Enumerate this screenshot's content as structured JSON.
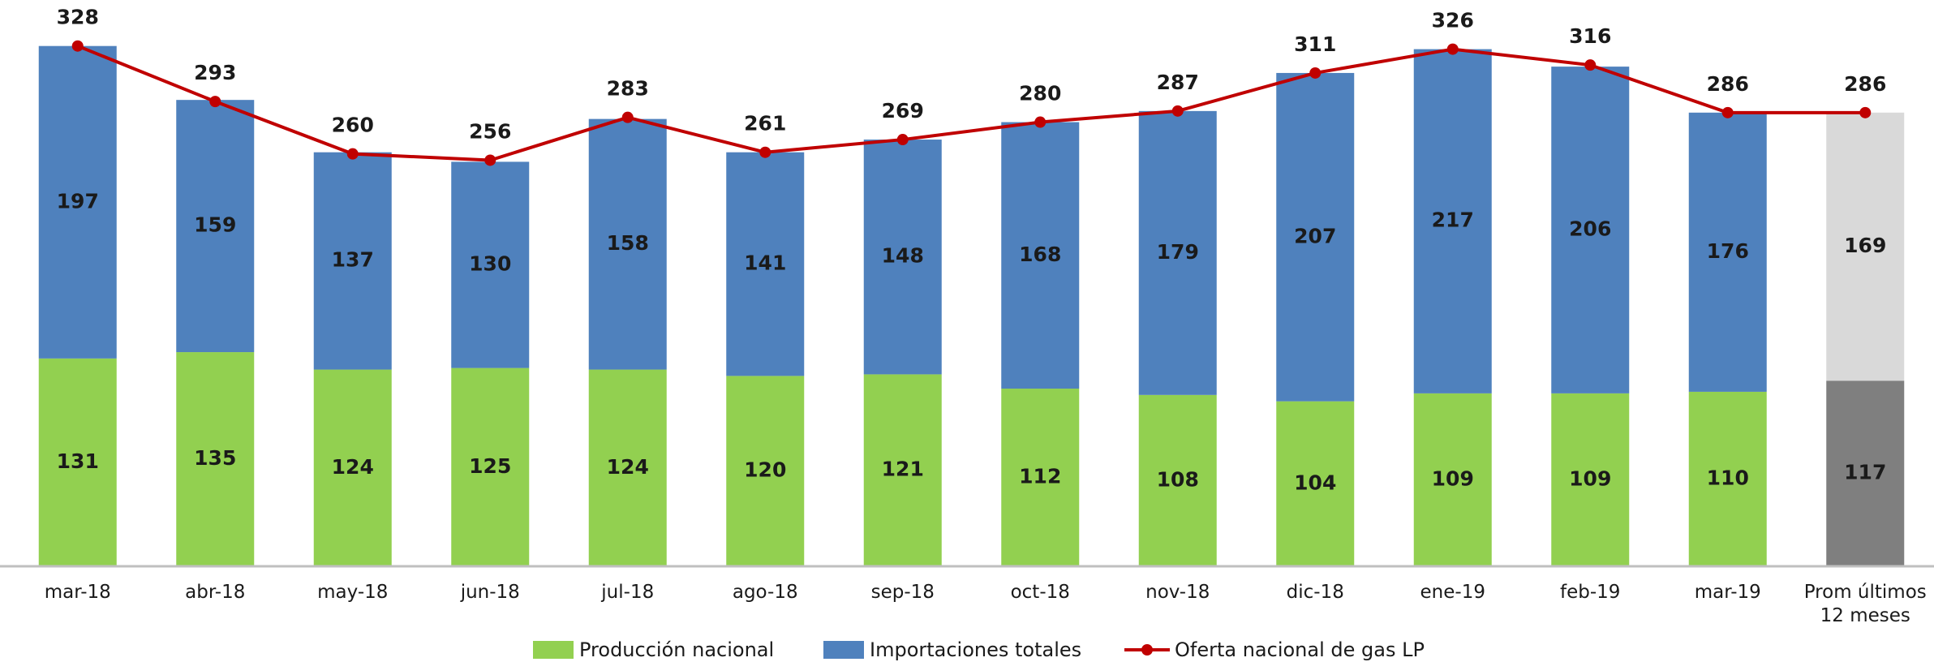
{
  "chart_data": {
    "type": "bar",
    "stacked": true,
    "categories": [
      "mar-18",
      "abr-18",
      "may-18",
      "jun-18",
      "jul-18",
      "ago-18",
      "sep-18",
      "oct-18",
      "nov-18",
      "dic-18",
      "ene-19",
      "feb-19",
      "mar-19",
      "Prom últimos\n12 meses"
    ],
    "series": [
      {
        "name": "Producción nacional",
        "type": "bar",
        "color": "#92d050",
        "colors": [
          "#92d050",
          "#92d050",
          "#92d050",
          "#92d050",
          "#92d050",
          "#92d050",
          "#92d050",
          "#92d050",
          "#92d050",
          "#92d050",
          "#92d050",
          "#92d050",
          "#92d050",
          "#7f7f7f"
        ],
        "values": [
          131,
          135,
          124,
          125,
          124,
          120,
          121,
          112,
          108,
          104,
          109,
          109,
          110,
          117
        ]
      },
      {
        "name": "Importaciones totales",
        "type": "bar",
        "color": "#4f81bd",
        "colors": [
          "#4f81bd",
          "#4f81bd",
          "#4f81bd",
          "#4f81bd",
          "#4f81bd",
          "#4f81bd",
          "#4f81bd",
          "#4f81bd",
          "#4f81bd",
          "#4f81bd",
          "#4f81bd",
          "#4f81bd",
          "#4f81bd",
          "#d9d9d9"
        ],
        "values": [
          197,
          159,
          137,
          130,
          158,
          141,
          148,
          168,
          179,
          207,
          217,
          206,
          176,
          169
        ]
      },
      {
        "name": "Oferta nacional de gas LP",
        "type": "line",
        "color": "#c00000",
        "values": [
          328,
          293,
          260,
          256,
          283,
          261,
          269,
          280,
          287,
          311,
          326,
          316,
          286,
          286
        ]
      }
    ],
    "ylim": [
      0,
      357
    ],
    "legend": "bottom"
  }
}
